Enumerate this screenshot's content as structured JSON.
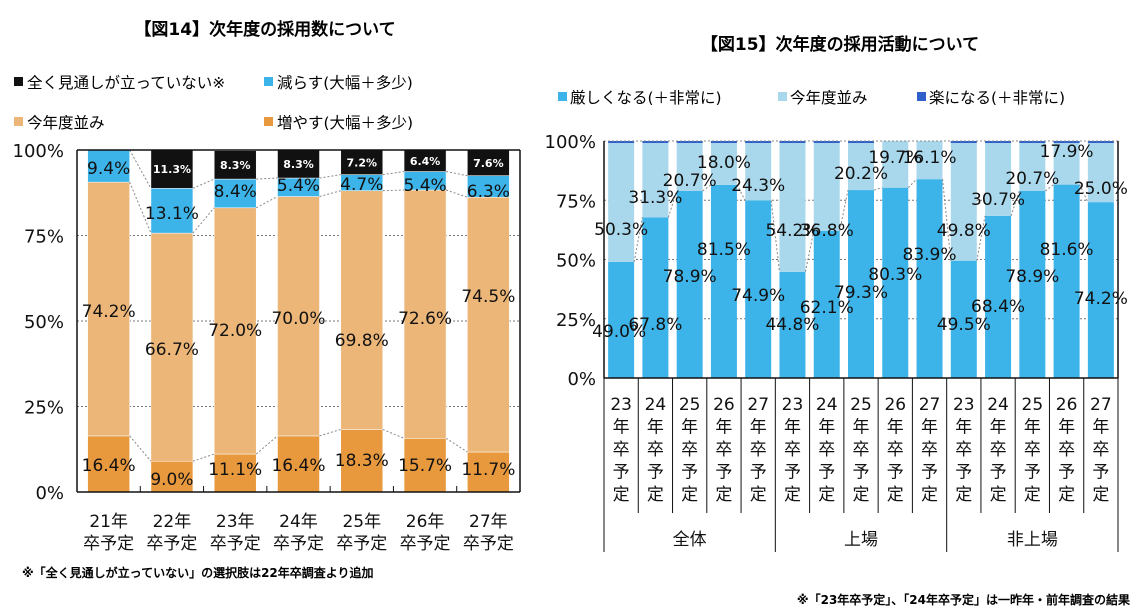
{
  "chart_data": [
    {
      "type": "bar",
      "stacked": true,
      "title": "【図14】次年度の採用数について",
      "categories": [
        [
          "21年",
          "卒予定"
        ],
        [
          "22年",
          "卒予定"
        ],
        [
          "23年",
          "卒予定"
        ],
        [
          "24年",
          "卒予定"
        ],
        [
          "25年",
          "卒予定"
        ],
        [
          "26年",
          "卒予定"
        ],
        [
          "27年",
          "卒予定"
        ]
      ],
      "series": [
        {
          "name": "増やす(大幅＋多少)",
          "color": "#E8993E",
          "values": [
            16.4,
            9.0,
            11.1,
            16.4,
            18.3,
            15.7,
            11.7
          ]
        },
        {
          "name": "今年度並み",
          "color": "#EBB678",
          "values": [
            74.2,
            66.7,
            72.0,
            70.0,
            69.8,
            72.6,
            74.5
          ]
        },
        {
          "name": "減らす(大幅＋多少)",
          "color": "#3DB4E9",
          "values": [
            9.4,
            13.1,
            8.4,
            5.4,
            4.7,
            5.4,
            6.3
          ]
        },
        {
          "name": "全く見通しが立っていない※",
          "color": "#111111",
          "values": [
            null,
            11.3,
            8.3,
            8.3,
            7.2,
            6.4,
            7.6
          ]
        }
      ],
      "legend": [
        {
          "name": "全く見通しが立っていない※",
          "color": "#111111"
        },
        {
          "name": "減らす(大幅＋多少)",
          "color": "#3DB4E9"
        },
        {
          "name": "今年度並み",
          "color": "#EBB678"
        },
        {
          "name": "増やす(大幅＋多少)",
          "color": "#E8993E"
        }
      ],
      "legend_position": "top-left",
      "yticks": [
        "0%",
        "25%",
        "50%",
        "75%",
        "100%"
      ],
      "ylim": [
        0,
        100
      ],
      "grid": true,
      "note": "※「全く見通しが立っていない」の選択肢は22年卒調査より追加"
    },
    {
      "type": "bar",
      "stacked": true,
      "title": "【図15】次年度の採用活動について",
      "categories": [
        "23年卒予定",
        "24年卒予定",
        "25年卒予定",
        "26年卒予定",
        "27年卒予定",
        "23年卒予定",
        "24年卒予定",
        "25年卒予定",
        "26年卒予定",
        "27年卒予定",
        "23年卒予定",
        "24年卒予定",
        "25年卒予定",
        "26年卒予定",
        "27年卒予定"
      ],
      "category_labels": [
        [
          "23",
          "年",
          "卒",
          "予",
          "定"
        ],
        [
          "24",
          "年",
          "卒",
          "予",
          "定"
        ],
        [
          "25",
          "年",
          "卒",
          "予",
          "定"
        ],
        [
          "26",
          "年",
          "卒",
          "予",
          "定"
        ],
        [
          "27",
          "年",
          "卒",
          "予",
          "定"
        ],
        [
          "23",
          "年",
          "卒",
          "予",
          "定"
        ],
        [
          "24",
          "年",
          "卒",
          "予",
          "定"
        ],
        [
          "25",
          "年",
          "卒",
          "予",
          "定"
        ],
        [
          "26",
          "年",
          "卒",
          "予",
          "定"
        ],
        [
          "27",
          "年",
          "卒",
          "予",
          "定"
        ],
        [
          "23",
          "年",
          "卒",
          "予",
          "定"
        ],
        [
          "24",
          "年",
          "卒",
          "予",
          "定"
        ],
        [
          "25",
          "年",
          "卒",
          "予",
          "定"
        ],
        [
          "26",
          "年",
          "卒",
          "予",
          "定"
        ],
        [
          "27",
          "年",
          "卒",
          "予",
          "定"
        ]
      ],
      "groups": [
        "全体",
        "上場",
        "非上場"
      ],
      "series": [
        {
          "name": "厳しくなる(＋非常に)",
          "color": "#3DB4E9",
          "values": [
            49.0,
            67.8,
            78.9,
            81.5,
            74.9,
            44.8,
            62.1,
            79.3,
            80.3,
            83.9,
            49.5,
            68.4,
            78.9,
            81.6,
            74.2
          ]
        },
        {
          "name": "今年度並み",
          "color": "#A9D8EC",
          "values": [
            50.3,
            31.3,
            20.7,
            18.0,
            24.3,
            54.2,
            36.8,
            20.2,
            19.7,
            16.1,
            49.8,
            30.7,
            20.7,
            17.9,
            25.0
          ]
        },
        {
          "name": "楽になる(＋非常に)",
          "color": "#2F5FCB",
          "values": [
            0.7,
            0.9,
            0.4,
            0.5,
            0.8,
            1.0,
            1.1,
            0.5,
            0.0,
            0.0,
            0.7,
            0.9,
            0.4,
            0.5,
            0.8
          ]
        }
      ],
      "legend_position": "top",
      "yticks": [
        "0%",
        "25%",
        "50%",
        "75%",
        "100%"
      ],
      "ylim": [
        0,
        100
      ],
      "grid": true,
      "note": "※「23年卒予定」、「24年卒予定」は一昨年・前年調査の結果"
    }
  ]
}
